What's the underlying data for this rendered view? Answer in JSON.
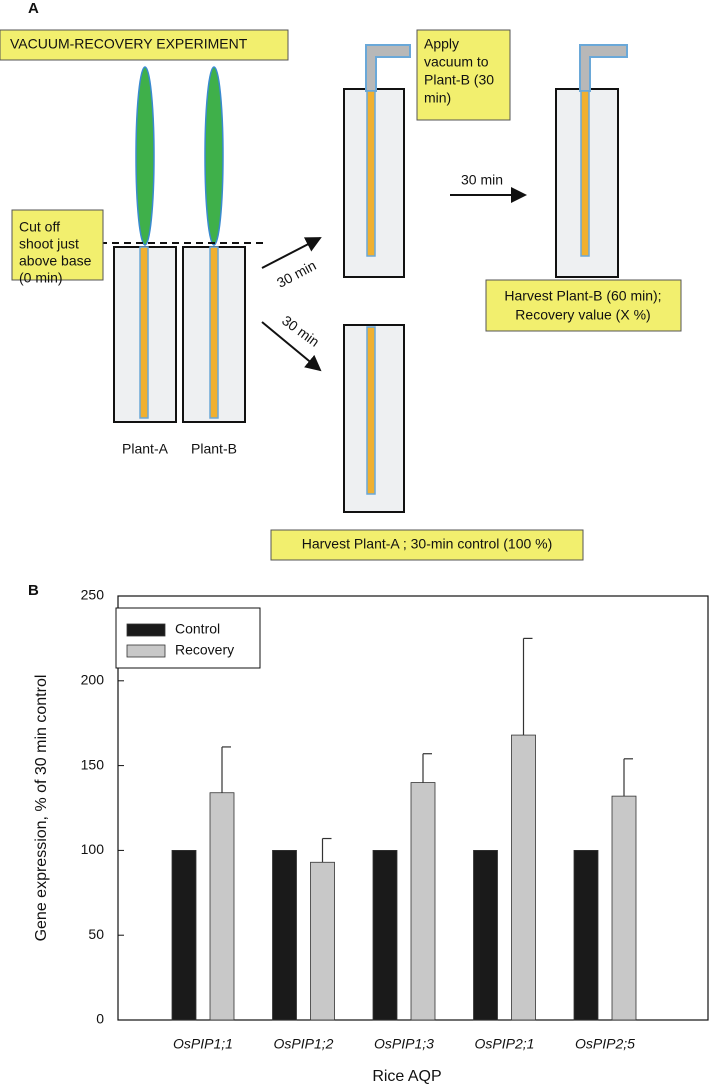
{
  "panel_a": {
    "label": "A",
    "title": "VACUUM-RECOVERY EXPERIMENT",
    "cut_note": [
      "Cut off",
      "shoot just",
      "above base",
      "(0 min)"
    ],
    "plants": [
      "Plant-A",
      "Plant-B"
    ],
    "arrow_up_label": "30 min",
    "arrow_down_label": "30 min",
    "arrow_right_label": "30 min",
    "vacuum_note": [
      "Apply",
      "vacuum to",
      "Plant-B (30",
      "min)"
    ],
    "harvest_b_note": [
      "Harvest Plant-B (60 min);",
      "Recovery value (X %)"
    ],
    "harvest_a_note": "Harvest Plant-A ; 30-min control (100 %)"
  },
  "chart_data": {
    "type": "bar",
    "panel_label": "B",
    "y_label": "Gene expression, % of 30 min control",
    "x_label": "Rice AQP",
    "categories": [
      "OsPIP1;1",
      "OsPIP1;2",
      "OsPIP1;3",
      "OsPIP2;1",
      "OsPIP2;5"
    ],
    "series": [
      {
        "name": "Control",
        "color": "#1a1a1a",
        "values": [
          100,
          100,
          100,
          100,
          100
        ]
      },
      {
        "name": "Recovery",
        "color": "#c8c8c8",
        "values": [
          134,
          93,
          140,
          168,
          132
        ],
        "errors": [
          27,
          14,
          17,
          57,
          22
        ]
      }
    ],
    "ylim": [
      0,
      250
    ],
    "yticks": [
      0,
      50,
      100,
      150,
      200,
      250
    ],
    "legend": "upper left"
  }
}
